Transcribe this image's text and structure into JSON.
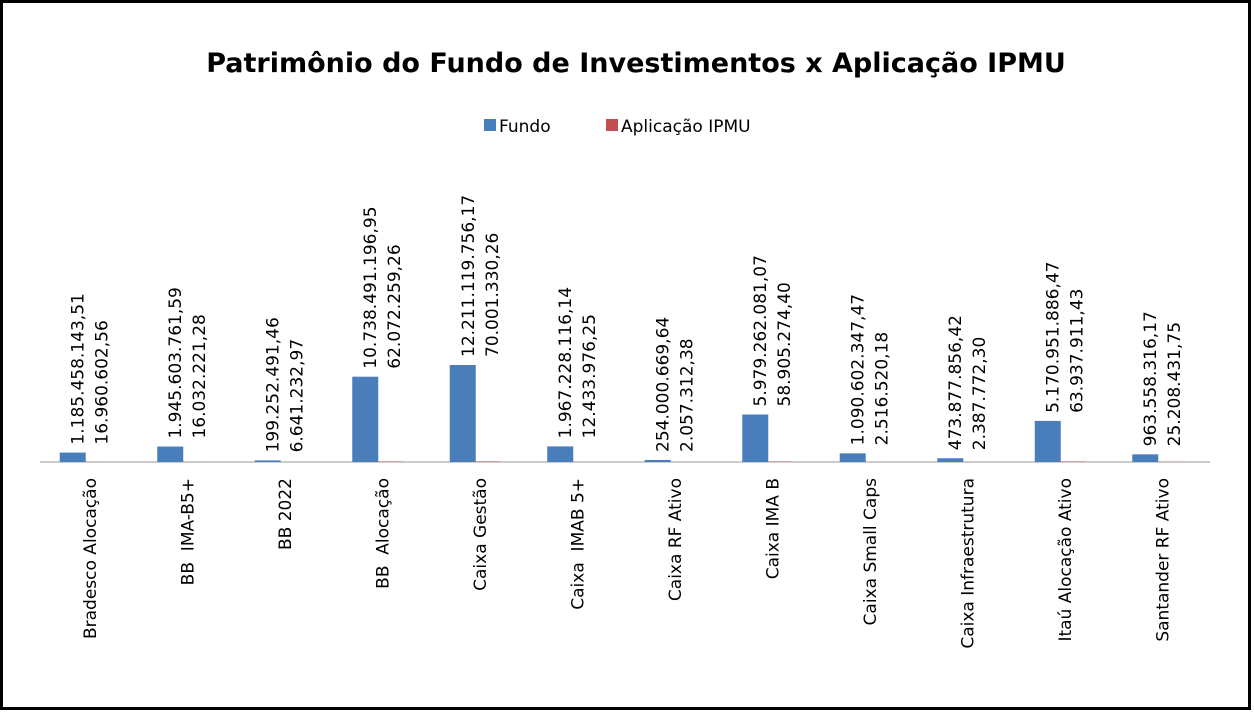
{
  "chart_data": {
    "type": "bar",
    "title": "Patrimônio do Fundo de Investimentos x Aplicação IPMU",
    "categories": [
      "Bradesco Alocação",
      "BB  IMA-B5+",
      "BB 2022",
      "BB  Alocação",
      "Caixa Gestão",
      "Caixa  IMAB 5+",
      "Caixa RF Ativo",
      "Caixa IMA B",
      "Caixa Small Caps",
      "Caixa Infraestrutura",
      "Itaú Alocação Ativo",
      "Santander RF Ativo"
    ],
    "series": [
      {
        "name": "Fundo",
        "color": "#4a7ebb",
        "values": [
          1185458143.51,
          1945603761.59,
          199252491.46,
          10738491196.95,
          12211119756.17,
          1967228116.14,
          254000669.64,
          5979262081.07,
          1090602347.47,
          473877856.42,
          5170951886.47,
          963558316.17
        ],
        "value_labels": [
          "1.185.458.143,51",
          "1.945.603.761,59",
          "199.252.491,46",
          "10.738.491.196,95",
          "12.211.119.756,17",
          "1.967.228.116,14",
          "254.000.669,64",
          "5.979.262.081,07",
          "1.090.602.347,47",
          "473.877.856,42",
          "5.170.951.886,47",
          "963.558.316,17"
        ]
      },
      {
        "name": "Aplicação IPMU",
        "color": "#c0504d",
        "values": [
          16960602.56,
          16032221.28,
          6641232.97,
          62072259.26,
          70001330.26,
          12433976.25,
          2057312.38,
          58905274.4,
          2516520.18,
          2387772.3,
          63937911.43,
          25208431.75
        ],
        "value_labels": [
          "16.960.602,56",
          "16.032.221,28",
          "6.641.232,97",
          "62.072.259,26",
          "70.001.330,26",
          "12.433.976,25",
          "2.057.312,38",
          "58.905.274,40",
          "2.516.520,18",
          "2.387.772,30",
          "63.937.911,43",
          "25.208.431,75"
        ]
      }
    ],
    "legend": "top"
  }
}
